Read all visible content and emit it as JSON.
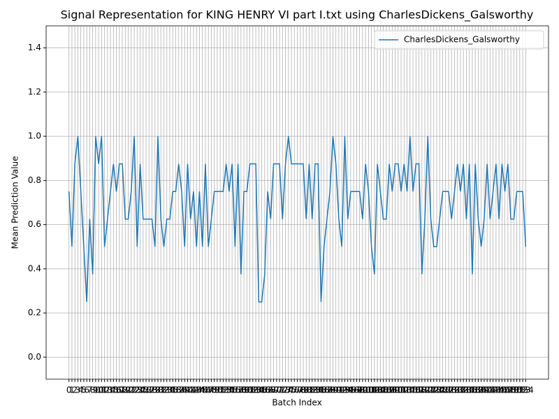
{
  "chart_data": {
    "type": "line",
    "title": "Signal Representation for KING HENRY VI part I.txt using CharlesDickens_Galsworthy",
    "x_label": "Batch Index",
    "y_label": "Mean Prediction Value",
    "x": [
      0,
      1,
      2,
      3,
      4,
      5,
      6,
      7,
      8,
      9,
      10,
      11,
      12,
      13,
      14,
      15,
      16,
      17,
      18,
      19,
      20,
      21,
      22,
      23,
      24,
      25,
      26,
      27,
      28,
      29,
      30,
      31,
      32,
      33,
      34,
      35,
      36,
      37,
      38,
      39,
      40,
      41,
      42,
      43,
      44,
      45,
      46,
      47,
      48,
      49,
      50,
      51,
      52,
      53,
      54,
      55,
      56,
      57,
      58,
      59,
      60,
      61,
      62,
      63,
      64,
      65,
      66,
      67,
      68,
      69,
      70,
      71,
      72,
      73,
      74,
      75,
      76,
      77,
      78,
      79,
      80,
      81,
      82,
      83,
      84,
      85,
      86,
      87,
      88,
      89,
      90,
      91,
      92,
      93,
      94,
      95,
      96,
      97,
      98,
      99,
      100,
      101,
      102,
      103,
      104,
      105,
      106,
      107,
      108,
      109,
      110,
      111,
      112,
      113,
      114,
      115,
      116,
      117,
      118,
      119,
      120,
      121,
      122,
      123,
      124,
      125,
      126,
      127,
      128,
      129,
      130,
      131,
      132,
      133,
      134,
      135,
      136,
      137,
      138,
      139,
      140,
      141,
      142,
      143,
      144,
      145,
      146,
      147,
      148,
      149,
      150,
      151,
      152,
      153,
      154
    ],
    "series": [
      {
        "name": "CharlesDickens_Galsworthy",
        "color": "#1f77b4",
        "values": [
          0.75,
          0.5,
          0.875,
          1.0,
          0.75,
          0.5,
          0.25,
          0.625,
          0.375,
          1.0,
          0.875,
          1.0,
          0.5,
          0.625,
          0.75,
          0.875,
          0.75,
          0.875,
          0.875,
          0.625,
          0.625,
          0.75,
          1.0,
          0.5,
          0.875,
          0.625,
          0.625,
          0.625,
          0.625,
          0.5,
          1.0,
          0.625,
          0.5,
          0.625,
          0.625,
          0.75,
          0.75,
          0.875,
          0.75,
          0.5,
          0.875,
          0.625,
          0.75,
          0.5,
          0.75,
          0.5,
          0.875,
          0.5,
          0.625,
          0.75,
          0.75,
          0.75,
          0.75,
          0.875,
          0.75,
          0.875,
          0.5,
          0.875,
          0.375,
          0.75,
          0.75,
          0.875,
          0.875,
          0.875,
          0.25,
          0.25,
          0.375,
          0.75,
          0.625,
          0.875,
          0.875,
          0.875,
          0.625,
          0.875,
          1.0,
          0.875,
          0.875,
          0.875,
          0.875,
          0.875,
          0.625,
          0.875,
          0.625,
          0.875,
          0.875,
          0.25,
          0.5,
          0.625,
          0.75,
          1.0,
          0.875,
          0.625,
          0.5,
          1.0,
          0.625,
          0.75,
          0.75,
          0.75,
          0.75,
          0.625,
          0.875,
          0.75,
          0.5,
          0.375,
          0.875,
          0.75,
          0.625,
          0.625,
          0.875,
          0.75,
          0.875,
          0.875,
          0.75,
          0.875,
          0.75,
          1.0,
          0.75,
          0.875,
          0.875,
          0.375,
          0.625,
          1.0,
          0.625,
          0.5,
          0.5,
          0.625,
          0.75,
          0.75,
          0.75,
          0.625,
          0.75,
          0.875,
          0.75,
          0.875,
          0.625,
          0.875,
          0.375,
          0.875,
          0.625,
          0.5,
          0.625,
          0.875,
          0.625,
          0.75,
          0.875,
          0.625,
          0.875,
          0.75,
          0.875,
          0.625,
          0.625,
          0.75,
          0.75,
          0.75,
          0.5
        ]
      }
    ],
    "xlim": [
      -7.7,
      161.7
    ],
    "xticks": [
      0,
      1,
      2,
      3,
      4,
      5,
      6,
      7,
      8,
      9,
      10,
      11,
      12,
      13,
      14,
      15,
      16,
      17,
      18,
      19,
      20,
      21,
      22,
      23,
      24,
      25,
      26,
      27,
      28,
      29,
      30,
      31,
      32,
      33,
      34,
      35,
      36,
      37,
      38,
      39,
      40,
      41,
      42,
      43,
      44,
      45,
      46,
      47,
      48,
      49,
      50,
      51,
      52,
      53,
      54,
      55,
      56,
      57,
      58,
      59,
      60,
      61,
      62,
      63,
      64,
      65,
      66,
      67,
      68,
      69,
      70,
      71,
      72,
      73,
      74,
      75,
      76,
      77,
      78,
      79,
      80,
      81,
      82,
      83,
      84,
      85,
      86,
      87,
      88,
      89,
      90,
      91,
      92,
      93,
      94,
      95,
      96,
      97,
      98,
      99,
      100,
      101,
      102,
      103,
      104,
      105,
      106,
      107,
      108,
      109,
      110,
      111,
      112,
      113,
      114,
      115,
      116,
      117,
      118,
      119,
      120,
      121,
      122,
      123,
      124,
      125,
      126,
      127,
      128,
      129,
      130,
      131,
      132,
      133,
      134,
      135,
      136,
      137,
      138,
      139,
      140,
      141,
      142,
      143,
      144,
      145,
      146,
      147,
      148,
      149,
      150,
      151,
      152,
      153,
      154
    ],
    "ylim": [
      -0.1,
      1.5
    ],
    "yticks": [
      {
        "value": 0,
        "label": "0.0"
      },
      0.2,
      0.4,
      0.6,
      0.8,
      {
        "value": 1,
        "label": "1.0"
      },
      1.2,
      1.4
    ],
    "grid": true,
    "legend": "upper right"
  }
}
